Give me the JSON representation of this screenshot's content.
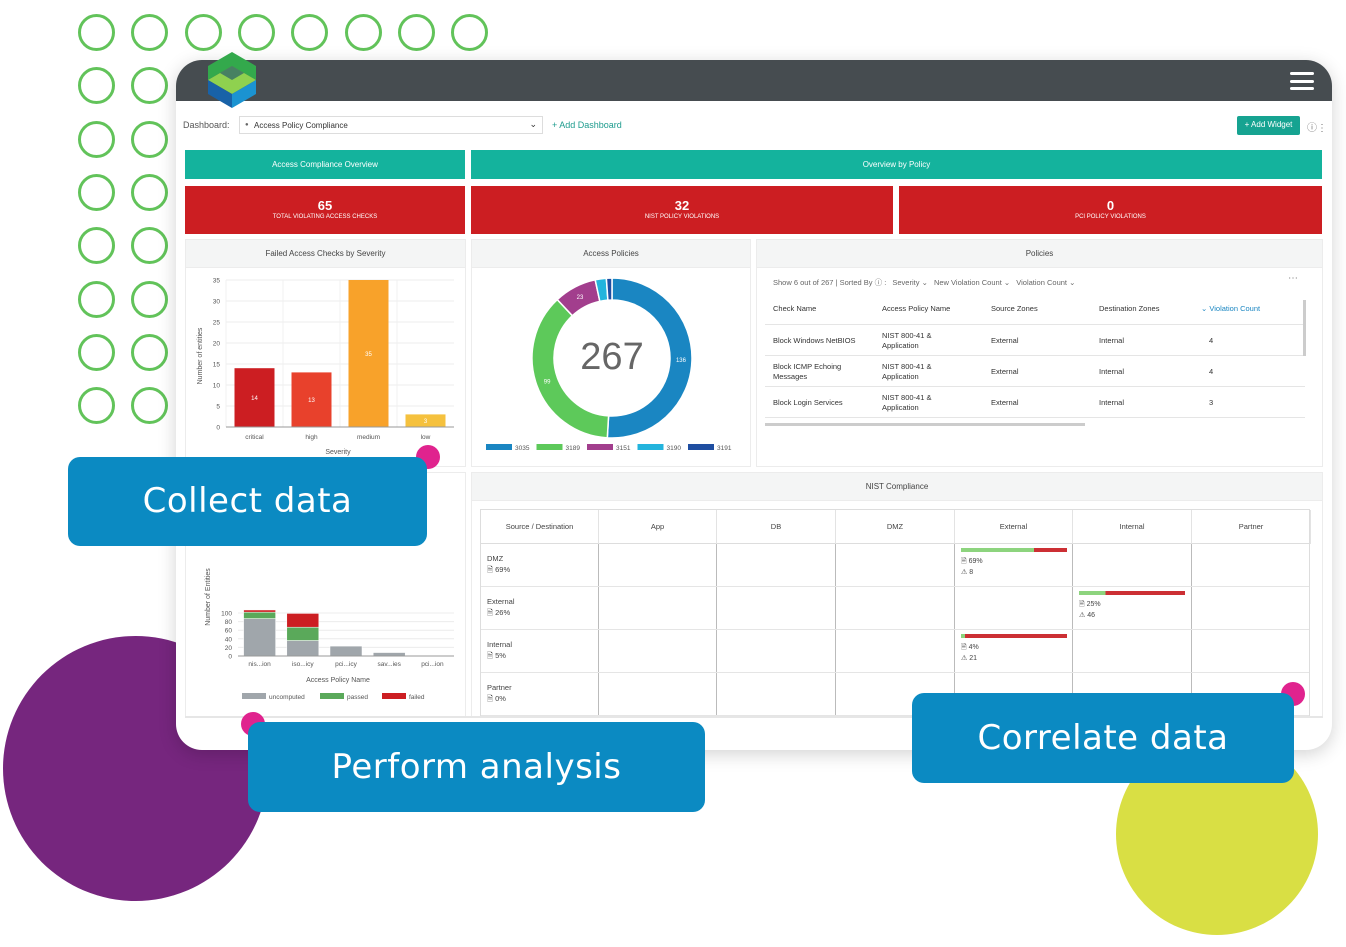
{
  "toolbar": {
    "dashboard_label": "Dashboard:",
    "dashboard_value": "Access Policy Compliance",
    "add_dashboard": "+ Add Dashboard",
    "add_widget": "+ Add Widget"
  },
  "headers": {
    "access_overview": "Access Compliance Overview",
    "overview_policy": "Overview by Policy"
  },
  "stats": [
    {
      "value": "65",
      "caption": "TOTAL VIOLATING ACCESS CHECKS"
    },
    {
      "value": "32",
      "caption": "NIST POLICY VIOLATIONS"
    },
    {
      "value": "0",
      "caption": "PCI POLICY VIOLATIONS"
    }
  ],
  "severity_chart": {
    "title": "Failed Access Checks by Severity",
    "xlabel": "Severity",
    "ylabel": "Number of entities"
  },
  "policy_chart": {
    "xlabel": "Access Policy Name",
    "ylabel": "Number of Entities"
  },
  "donut": {
    "title": "Access Policies",
    "total": "267"
  },
  "policies": {
    "title": "Policies",
    "summary": "Show 6 out of 267 | Sorted By",
    "sort_keys": [
      "Severity",
      "New Violation Count",
      "Violation Count"
    ],
    "columns": [
      "Check Name",
      "Access Policy Name",
      "Source Zones",
      "Destination Zones",
      "Violation Count"
    ],
    "rows": [
      {
        "check": "Block Windows NetBIOS",
        "policy": "NIST 800-41 & Application",
        "src": "External",
        "dst": "Internal",
        "count": "4"
      },
      {
        "check": "Block ICMP Echoing Messages",
        "policy": "NIST 800-41 & Application",
        "src": "External",
        "dst": "Internal",
        "count": "4"
      },
      {
        "check": "Block Login Services",
        "policy": "NIST 800-41 & Application",
        "src": "External",
        "dst": "Internal",
        "count": "3"
      }
    ]
  },
  "nist": {
    "title": "NIST Compliance",
    "columns": [
      "Source / Destination",
      "App",
      "DB",
      "DMZ",
      "External",
      "Internal",
      "Partner"
    ],
    "rows": [
      {
        "name": "DMZ",
        "pct": "69%"
      },
      {
        "name": "External",
        "pct": "26%"
      },
      {
        "name": "Internal",
        "pct": "5%"
      },
      {
        "name": "Partner",
        "pct": "0%"
      }
    ],
    "cells": [
      {
        "row": 0,
        "col": 4,
        "pct": "69%",
        "count": "8",
        "pass": 0.69
      },
      {
        "row": 1,
        "col": 5,
        "pct": "25%",
        "count": "46",
        "pass": 0.25
      },
      {
        "row": 2,
        "col": 4,
        "pct": "4%",
        "count": "21",
        "pass": 0.04
      }
    ]
  },
  "callouts": {
    "collect": "Collect data",
    "analyze": "Perform analysis",
    "correlate": "Correlate data"
  },
  "colors": {
    "teal": "#14b39d",
    "red": "#cc1e22",
    "callout": "#0b8ac2",
    "purple": "#76267e",
    "lime": "#d9df44",
    "ring": "#62c35a",
    "pink": "#e0238e"
  },
  "chart_data": [
    {
      "type": "bar",
      "title": "Failed Access Checks by Severity",
      "xlabel": "Severity",
      "ylabel": "Number of entities",
      "categories": [
        "critical",
        "high",
        "medium",
        "low"
      ],
      "values": [
        14,
        13,
        35,
        3
      ],
      "colors": [
        "#cc1e22",
        "#e8412c",
        "#f8a22a",
        "#f5c13e"
      ],
      "ylim": [
        0,
        35
      ],
      "yticks": [
        0,
        5,
        10,
        15,
        20,
        25,
        30,
        35
      ]
    },
    {
      "type": "pie",
      "title": "Access Policies",
      "center_label": "267",
      "slices": [
        {
          "name": "3035",
          "value": 136,
          "color": "#1a86c2"
        },
        {
          "name": "3189",
          "value": 99,
          "color": "#5dc95a"
        },
        {
          "name": "3151",
          "value": 23,
          "color": "#a23e8d"
        },
        {
          "name": "3190",
          "value": 6,
          "color": "#23b4dd"
        },
        {
          "name": "3191",
          "value": 3,
          "color": "#1f4ea1"
        }
      ]
    },
    {
      "type": "bar",
      "xlabel": "Access Policy Name",
      "ylabel": "Number of Entities",
      "categories": [
        "nis...ion",
        "iso...icy",
        "pci...icy",
        "sav...ies",
        "pci...ion"
      ],
      "series": [
        {
          "name": "uncomputed",
          "color": "#a0a6ab",
          "values": [
            87,
            36,
            23,
            8,
            1
          ]
        },
        {
          "name": "passed",
          "color": "#5aa95a",
          "values": [
            15,
            31,
            0,
            0,
            0
          ]
        },
        {
          "name": "failed",
          "color": "#cc1e22",
          "values": [
            5,
            32,
            0,
            0,
            0
          ]
        }
      ],
      "ylim": [
        0,
        100
      ],
      "yticks": [
        0,
        20,
        40,
        60,
        80,
        100
      ]
    }
  ]
}
